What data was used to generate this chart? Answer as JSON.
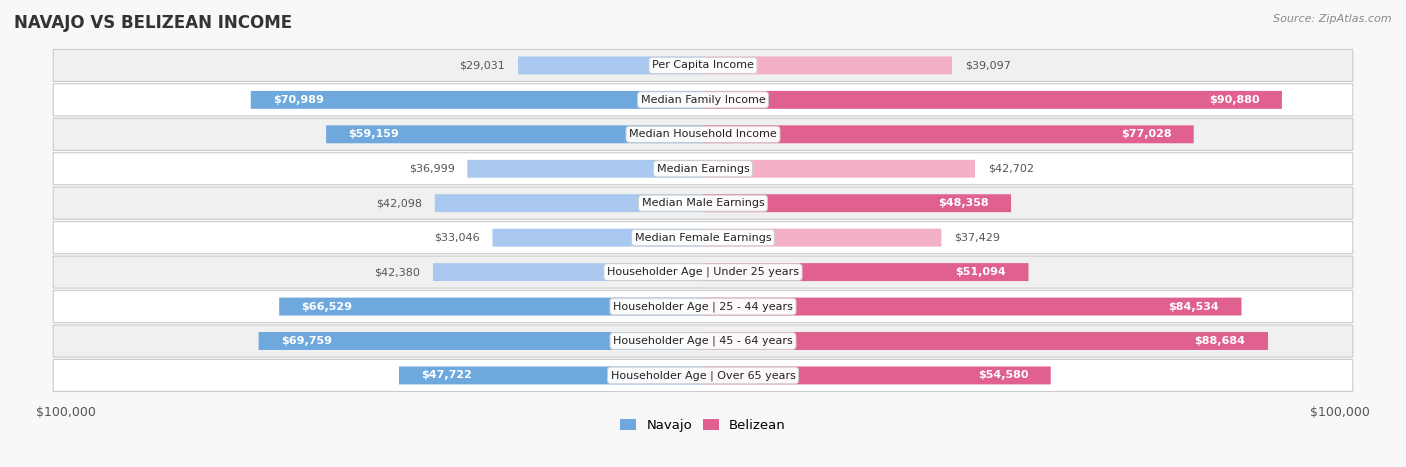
{
  "title": "NAVAJO VS BELIZEAN INCOME",
  "source": "Source: ZipAtlas.com",
  "categories": [
    "Per Capita Income",
    "Median Family Income",
    "Median Household Income",
    "Median Earnings",
    "Median Male Earnings",
    "Median Female Earnings",
    "Householder Age | Under 25 years",
    "Householder Age | 25 - 44 years",
    "Householder Age | 45 - 64 years",
    "Householder Age | Over 65 years"
  ],
  "navajo_values": [
    29031,
    70989,
    59159,
    36999,
    42098,
    33046,
    42380,
    66529,
    69759,
    47722
  ],
  "belizean_values": [
    39097,
    90880,
    77028,
    42702,
    48358,
    37429,
    51094,
    84534,
    88684,
    54580
  ],
  "navajo_labels": [
    "$29,031",
    "$70,989",
    "$59,159",
    "$36,999",
    "$42,098",
    "$33,046",
    "$42,380",
    "$66,529",
    "$69,759",
    "$47,722"
  ],
  "belizean_labels": [
    "$39,097",
    "$90,880",
    "$77,028",
    "$42,702",
    "$48,358",
    "$37,429",
    "$51,094",
    "$84,534",
    "$88,684",
    "$54,580"
  ],
  "navajo_color_large": "#6fa8dc",
  "navajo_color_small": "#a8c8f0",
  "belizean_color_large": "#e06090",
  "belizean_color_small": "#f4b0c8",
  "max_value": 100000,
  "bg_color": "#f8f8f8",
  "row_colors": [
    "#f0f0f0",
    "#ffffff"
  ],
  "legend_navajo": "Navajo",
  "legend_belizean": "Belizean",
  "inner_label_threshold": 45000,
  "label_fontsize": 8.0,
  "cat_fontsize": 8.0
}
